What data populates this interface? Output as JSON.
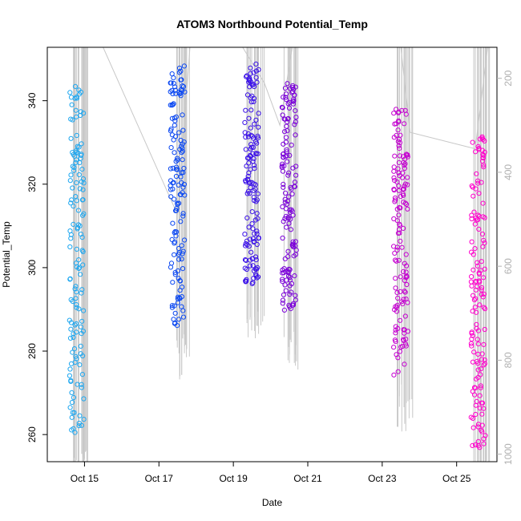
{
  "chart_data": {
    "type": "scatter",
    "title": "ATOM3 Northbound Potential_Temp",
    "xlabel": "Date",
    "ylabel": "Potential_Temp",
    "xlim": [
      "2011-10-14T00:00",
      "2011-10-26T02:00"
    ],
    "ylim": [
      253.5,
      352.8
    ],
    "x_ticks": [
      "Oct 15",
      "Oct 17",
      "Oct 19",
      "Oct 21",
      "Oct 23",
      "Oct 25"
    ],
    "x_tick_dates": [
      "2011-10-15",
      "2011-10-17",
      "2011-10-19",
      "2011-10-21",
      "2011-10-23",
      "2011-10-25"
    ],
    "y_ticks": [
      260,
      280,
      300,
      320,
      340
    ],
    "y2_label": "",
    "y2_ticks": [
      200,
      400,
      600,
      800,
      1000
    ],
    "y2_lim": [
      1016,
      134
    ],
    "y2_reversed": true,
    "grid": false,
    "marker": "open-circle",
    "profiles": [
      {
        "time": "2011-10-14T19:00",
        "range": [
          260,
          344
        ],
        "color": "#1ea7f0"
      },
      {
        "time": "2011-10-17T12:00",
        "range": [
          286,
          349
        ],
        "color": "#0a47f2"
      },
      {
        "time": "2011-10-19T12:00",
        "range": [
          296,
          349
        ],
        "color": "#3a10e8"
      },
      {
        "time": "2011-10-20T12:00",
        "range": [
          289,
          345
        ],
        "color": "#7a00d8"
      },
      {
        "time": "2011-10-23T12:00",
        "range": [
          274,
          338
        ],
        "color": "#c400d0"
      },
      {
        "time": "2011-10-25T14:00",
        "range": [
          256,
          333
        ],
        "color": "#ff00cc"
      }
    ],
    "pressure_track": {
      "color": "#c8c8c8",
      "path": [
        [
          "2011-10-14T18:00",
          134
        ],
        [
          "2011-10-15T12:00",
          134
        ],
        [
          "2011-10-17T12:00",
          490
        ],
        [
          "2011-10-17T20:00",
          134
        ],
        [
          "2011-10-19T06:00",
          134
        ],
        [
          "2011-10-19T20:00",
          210
        ],
        [
          "2011-10-20T06:00",
          300
        ],
        [
          "2011-10-20T14:00",
          134
        ],
        [
          "2011-10-23T12:00",
          134
        ],
        [
          "2011-10-23T18:00",
          315
        ],
        [
          "2011-10-25T12:00",
          350
        ],
        [
          "2011-10-25T20:00",
          134
        ]
      ]
    }
  }
}
